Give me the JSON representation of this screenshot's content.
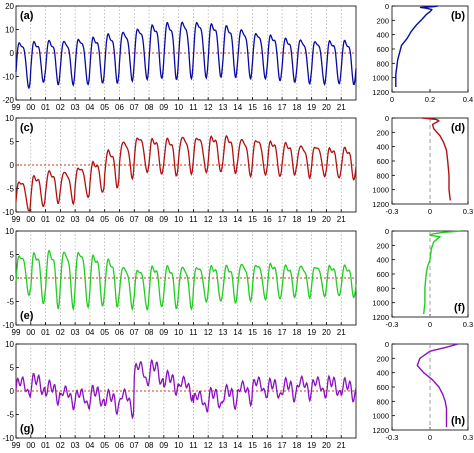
{
  "chart_data": [
    {
      "id": "a",
      "type": "line",
      "panel_label": "(a)",
      "xlabel": "",
      "ylabel": "",
      "ylim": [
        -20,
        20
      ],
      "yticks": [
        -20,
        -10,
        0,
        10,
        20
      ],
      "xlim": [
        1999,
        2022
      ],
      "xtick_labels": [
        "99",
        "00",
        "01",
        "02",
        "03",
        "04",
        "05",
        "06",
        "07",
        "08",
        "09",
        "10",
        "11",
        "12",
        "13",
        "14",
        "15",
        "16",
        "17",
        "18",
        "19",
        "20",
        "21"
      ],
      "color": "#0a0aa0",
      "zero_line_color": "#e0301e",
      "series": [
        {
          "amplitude_by_year": [
            9,
            8,
            8.5,
            8.5,
            9,
            9,
            9.5,
            9.5,
            10,
            10.5,
            11,
            11,
            11,
            10.5,
            10,
            9.5,
            9,
            9,
            8.5,
            8.5,
            8.5,
            8.5,
            8.5
          ],
          "baseline_by_year": [
            -3,
            -2,
            -2,
            -2,
            -1.5,
            -1,
            0,
            1,
            2,
            3,
            3.5,
            4,
            4,
            3.5,
            3,
            2,
            1,
            0,
            -1,
            -1.5,
            -2,
            -2,
            -2
          ]
        }
      ]
    },
    {
      "id": "b",
      "type": "line",
      "panel_label": "(b)",
      "xlabel": "",
      "ylabel": "",
      "xlim": [
        0,
        0.4
      ],
      "xticks": [
        0,
        0.2,
        0.4
      ],
      "xtick_labels": [
        "0",
        "0.2",
        "0.4"
      ],
      "ylim": [
        1200,
        0
      ],
      "yticks": [
        0,
        200,
        400,
        600,
        800,
        1000,
        1200
      ],
      "color": "#0a0aa0",
      "x": [
        0.24,
        0.22,
        0.15,
        0.18,
        0.21,
        0.2,
        0.18,
        0.16,
        0.13,
        0.1,
        0.08,
        0.05,
        0.04,
        0.03,
        0.025,
        0.02,
        0.02
      ],
      "y": [
        0,
        10,
        20,
        30,
        50,
        80,
        120,
        180,
        260,
        360,
        450,
        550,
        650,
        750,
        850,
        950,
        1130
      ]
    },
    {
      "id": "c",
      "type": "line",
      "panel_label": "(c)",
      "xlabel": "",
      "ylabel": "",
      "ylim": [
        -10,
        10
      ],
      "yticks": [
        -10,
        -5,
        0,
        5,
        10
      ],
      "xlim": [
        1999,
        2022
      ],
      "xtick_labels": [
        "99",
        "00",
        "01",
        "02",
        "03",
        "04",
        "05",
        "06",
        "07",
        "08",
        "09",
        "10",
        "11",
        "12",
        "13",
        "14",
        "15",
        "16",
        "17",
        "18",
        "19",
        "20",
        "21"
      ],
      "color": "#b01010",
      "zero_line_color": "#e0301e",
      "series": [
        {
          "amplitude_by_year": [
            3,
            3,
            3,
            3,
            3,
            3,
            3.5,
            3.5,
            3.5,
            3.5,
            3.5,
            3.5,
            3.5,
            3.5,
            3.5,
            3.5,
            3.5,
            3.5,
            3,
            3,
            3,
            3,
            3
          ],
          "baseline_by_year": [
            -6,
            -5,
            -4,
            -4,
            -3,
            -2,
            0,
            2,
            3,
            2.5,
            2.5,
            3,
            3,
            3,
            3,
            2.5,
            2.5,
            2,
            2,
            1.5,
            1.5,
            1,
            1
          ]
        }
      ]
    },
    {
      "id": "d",
      "type": "line",
      "panel_label": "(d)",
      "xlabel": "",
      "ylabel": "",
      "xlim": [
        -0.3,
        0.3
      ],
      "xticks": [
        -0.3,
        0,
        0.3
      ],
      "xtick_labels": [
        "-0.3",
        "0",
        "0.3"
      ],
      "ylim": [
        1200,
        0
      ],
      "yticks": [
        0,
        200,
        400,
        600,
        800,
        1000,
        1200
      ],
      "color": "#b01010",
      "x": [
        -0.06,
        0.05,
        0.07,
        0.05,
        0.02,
        0.03,
        0.08,
        0.11,
        0.13,
        0.14,
        0.15,
        0.15,
        0.16
      ],
      "y": [
        0,
        20,
        40,
        60,
        90,
        150,
        250,
        350,
        450,
        600,
        800,
        1000,
        1150
      ]
    },
    {
      "id": "e",
      "type": "line",
      "panel_label": "(e)",
      "xlabel": "",
      "ylabel": "",
      "ylim": [
        -10,
        10
      ],
      "yticks": [
        -10,
        -5,
        0,
        5,
        10
      ],
      "xlim": [
        1999,
        2022
      ],
      "xtick_labels": [
        "99",
        "00",
        "01",
        "02",
        "03",
        "04",
        "05",
        "06",
        "07",
        "08",
        "09",
        "10",
        "11",
        "12",
        "13",
        "14",
        "15",
        "16",
        "17",
        "18",
        "19",
        "20",
        "21"
      ],
      "color": "#22cc22",
      "zero_line_color": "#e0301e",
      "series": [
        {
          "amplitude_by_year": [
            4,
            5,
            5.5,
            5.5,
            5.5,
            5,
            4.5,
            4,
            4,
            4,
            4,
            4,
            3.5,
            3.5,
            3.5,
            3.5,
            3.5,
            3.5,
            3,
            3,
            3,
            3,
            3
          ],
          "baseline_by_year": [
            1.5,
            1,
            1,
            1,
            1,
            0.5,
            0,
            -1,
            -1.5,
            -1,
            -1,
            -1,
            -0.5,
            -0.5,
            -0.5,
            0,
            0,
            0,
            0,
            0,
            0,
            0,
            0
          ]
        }
      ]
    },
    {
      "id": "f",
      "type": "line",
      "panel_label": "(f)",
      "xlabel": "",
      "ylabel": "",
      "xlim": [
        -0.3,
        0.3
      ],
      "xticks": [
        -0.3,
        0,
        0.3
      ],
      "xtick_labels": [
        "-0.3",
        "0",
        "0.3"
      ],
      "ylim": [
        1200,
        0
      ],
      "yticks": [
        0,
        200,
        400,
        600,
        800,
        1000,
        1200
      ],
      "color": "#22cc22",
      "x": [
        0.24,
        0.1,
        0.02,
        0.0,
        0.08,
        0.03,
        0.01,
        0.0,
        -0.02,
        -0.03,
        -0.04,
        -0.04,
        -0.05
      ],
      "y": [
        0,
        20,
        40,
        60,
        80,
        150,
        250,
        400,
        500,
        600,
        800,
        1000,
        1160
      ]
    },
    {
      "id": "g",
      "type": "line",
      "panel_label": "(g)",
      "xlabel": "",
      "ylabel": "",
      "ylim": [
        -10,
        10
      ],
      "yticks": [
        -10,
        -5,
        0,
        5,
        10
      ],
      "xlim": [
        1999,
        2022
      ],
      "xtick_labels": [
        "99",
        "00",
        "01",
        "02",
        "03",
        "04",
        "05",
        "06",
        "07",
        "08",
        "09",
        "10",
        "11",
        "12",
        "13",
        "14",
        "15",
        "16",
        "17",
        "18",
        "19",
        "20",
        "21"
      ],
      "color": "#8a10c0",
      "zero_line_color": "#e0301e",
      "series": [
        {
          "amplitude_by_year": [
            1.5,
            1.5,
            1.5,
            1.5,
            1.5,
            1.5,
            1.5,
            2,
            2,
            2,
            1.5,
            1.5,
            1.5,
            1.5,
            1.5,
            1.5,
            1.5,
            1.5,
            1.5,
            1.5,
            1.5,
            1.5,
            1.5
          ],
          "baseline_by_year": [
            1,
            1.5,
            0,
            -1,
            -1.5,
            -1,
            -2,
            -2,
            4,
            4,
            2,
            1,
            -2,
            -1.5,
            -1,
            0,
            1,
            0.5,
            0.5,
            1,
            1,
            1,
            0.5
          ]
        }
      ]
    },
    {
      "id": "h",
      "type": "line",
      "panel_label": "(h)",
      "xlabel": "",
      "ylabel": "",
      "xlim": [
        -0.3,
        0.3
      ],
      "xticks": [
        -0.3,
        0,
        0.3
      ],
      "xtick_labels": [
        "-0.3",
        "0",
        "0.3"
      ],
      "ylim": [
        1200,
        0
      ],
      "yticks": [
        0,
        200,
        400,
        600,
        800,
        1000,
        1200
      ],
      "color": "#8a10c0",
      "x": [
        0.22,
        0.12,
        0.0,
        -0.08,
        -0.1,
        -0.05,
        0.02,
        0.07,
        0.1,
        0.12,
        0.13,
        0.13,
        0.13
      ],
      "y": [
        0,
        50,
        100,
        200,
        300,
        400,
        500,
        600,
        700,
        800,
        900,
        1000,
        1160
      ]
    }
  ]
}
